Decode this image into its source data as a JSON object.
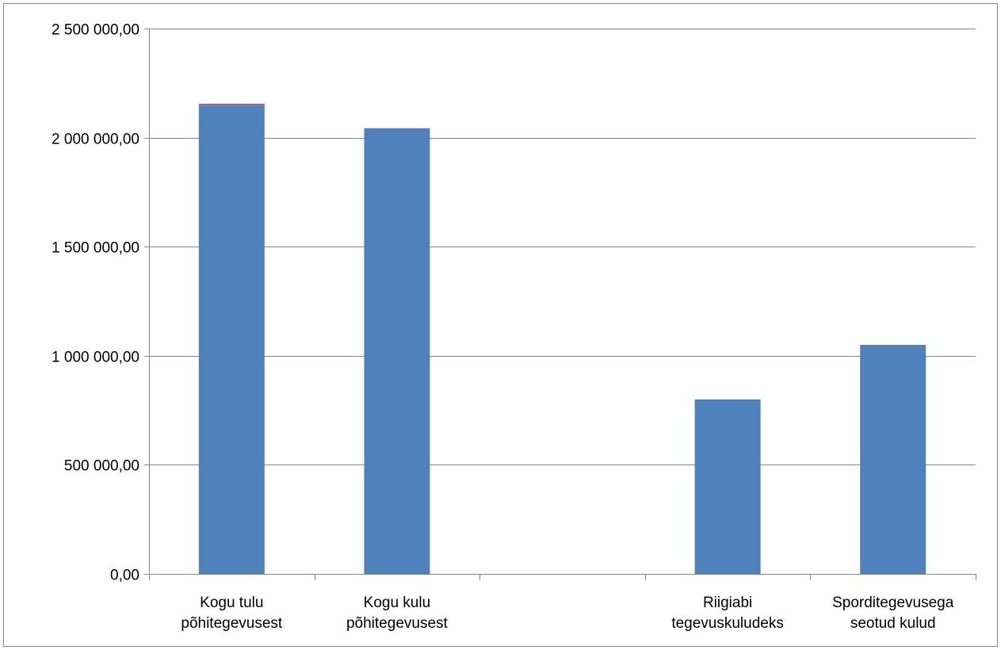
{
  "chart_data": {
    "type": "bar",
    "categories": [
      [
        "Kogu tulu",
        "põhitegevusest"
      ],
      [
        "Kogu kulu",
        "põhitegevusest"
      ],
      [
        ""
      ],
      [
        "Riigiabi",
        "tegevuskuludeks"
      ],
      [
        "Sporditegevusega",
        "seotud kulud"
      ]
    ],
    "values": [
      2150000,
      2043000,
      null,
      800000,
      1050000
    ],
    "ylim": [
      0,
      2500000
    ],
    "yticks": [
      0,
      500000,
      1000000,
      1500000,
      2000000,
      2500000
    ],
    "ytick_labels": [
      "0,00",
      "500 000,00",
      "1 000 000,00",
      "1 500 000,00",
      "2 000 000,00",
      "2 500 000,00"
    ],
    "title": "",
    "xlabel": "",
    "ylabel": "",
    "grid": true,
    "legend": "none",
    "colors": {
      "bar": "#4F81BD",
      "bar_top_accent": "#C0504D",
      "grid": "#868686",
      "axis": "#868686",
      "frame": "#868686"
    }
  }
}
